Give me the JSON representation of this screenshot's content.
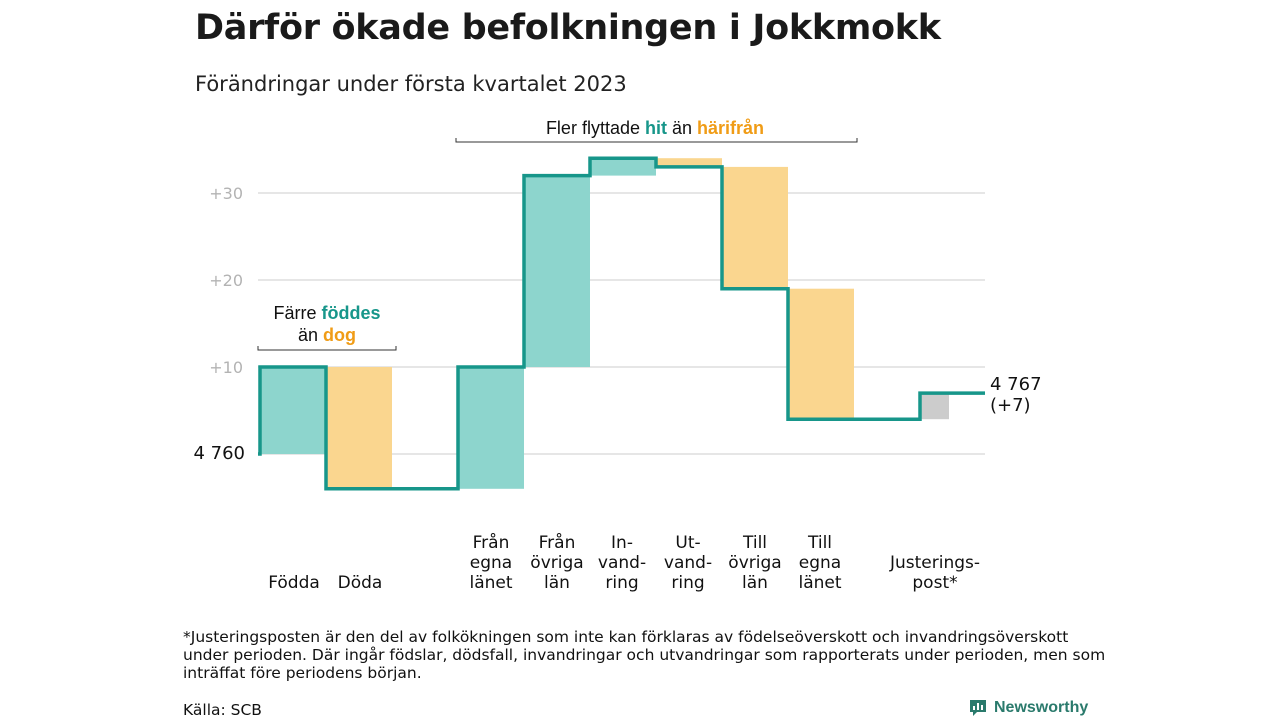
{
  "header": {
    "title": "Därför ökade befolkningen i Jokkmokk",
    "subtitle": "Förändringar under första kvartalet 2023"
  },
  "colors": {
    "increase": "#8dd5cd",
    "decrease": "#fad68f",
    "adjustment": "#cccccc",
    "line": "#17968a",
    "teal_text": "#17968a",
    "orange_text": "#f09c16",
    "grid": "#dddddd",
    "tick_text": "#b3b3b3"
  },
  "chart_data": {
    "type": "waterfall",
    "start": {
      "label": "4 760",
      "value": 4760
    },
    "end": {
      "label": "4 767",
      "change_label": "(+7)",
      "value": 4767
    },
    "y_ticks": [
      {
        "value": 10,
        "label": "+10"
      },
      {
        "value": 20,
        "label": "+20"
      },
      {
        "value": 30,
        "label": "+30"
      }
    ],
    "ylim": [
      -5,
      38
    ],
    "steps": [
      {
        "lines": [
          "Födda"
        ],
        "change": 10,
        "group": "births"
      },
      {
        "lines": [
          "Döda"
        ],
        "change": -14,
        "group": "births"
      },
      {
        "lines": [
          "Från",
          "egna",
          "länet"
        ],
        "change": 14,
        "group": "moves"
      },
      {
        "lines": [
          "Från",
          "övriga",
          "län"
        ],
        "change": 22,
        "group": "moves"
      },
      {
        "lines": [
          "In-",
          "vand-",
          "ring"
        ],
        "change": 2,
        "group": "moves"
      },
      {
        "lines": [
          "Ut-",
          "vand-",
          "ring"
        ],
        "change": -1,
        "group": "moves"
      },
      {
        "lines": [
          "Till",
          "övriga",
          "län"
        ],
        "change": -14,
        "group": "moves"
      },
      {
        "lines": [
          "Till",
          "egna",
          "länet"
        ],
        "change": -15,
        "group": "moves"
      },
      {
        "lines": [
          "Justerings-",
          "post*"
        ],
        "change": 3,
        "group": "adjustment"
      }
    ],
    "annotations": [
      {
        "id": "births",
        "line1": [
          "Färre ",
          "föddes"
        ],
        "line2": [
          "än ",
          "dog"
        ]
      },
      {
        "id": "moves",
        "line1": [
          "Fler flyttade ",
          "hit",
          " än ",
          "härifrån"
        ]
      }
    ]
  },
  "footnote": "*Justeringsposten är den del av folkökningen som inte kan förklaras av födelseöverskott och invandringsöverskott under perioden. Där ingår födslar, dödsfall, invandringar och utvandringar som rapporterats under perioden, men som inträffat före periodens början.",
  "source": "Källa: SCB",
  "logo": {
    "text": "Newsworthy",
    "icon": "newsworthy-bar-chart-icon"
  }
}
